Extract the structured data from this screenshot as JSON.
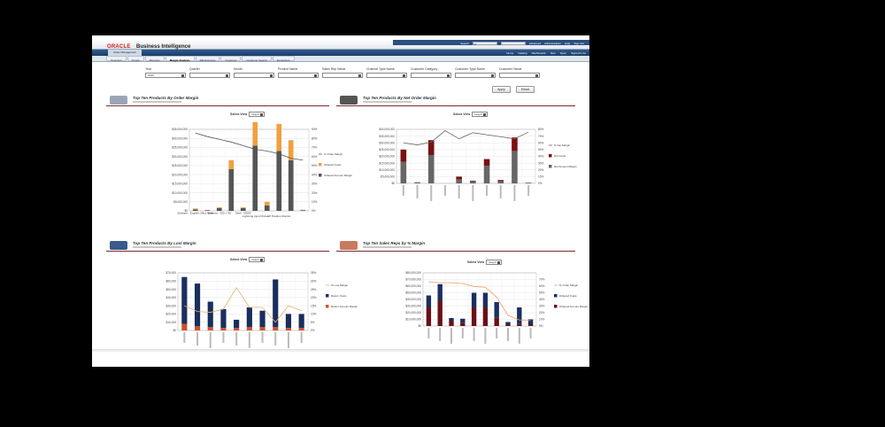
{
  "header": {
    "brand": "ORACLE",
    "product": "Business Intelligence",
    "search_label": "Search",
    "search_scope": "All",
    "links": [
      "Advanced",
      "Administration",
      "Help",
      "Sign Out"
    ]
  },
  "nav": {
    "items": [
      "Home",
      "Catalog",
      "Dashboards",
      "New",
      "Open",
      "Signed In As"
    ]
  },
  "dashboard_tab": "Order Management",
  "tabs": [
    {
      "label": "Overview"
    },
    {
      "label": "Trends"
    },
    {
      "label": "Revenue"
    },
    {
      "label": "Margin Analysis",
      "active": true
    },
    {
      "label": "Effectiveness"
    },
    {
      "label": "Customer"
    },
    {
      "label": "Customer Search"
    },
    {
      "label": "Exceptions"
    }
  ],
  "filters": [
    {
      "label": "Year",
      "value": "2009"
    },
    {
      "label": "Quarter",
      "value": ""
    },
    {
      "label": "Month",
      "value": ""
    },
    {
      "label": "Product Name",
      "value": ""
    },
    {
      "label": "Sales Rep Name",
      "value": ""
    },
    {
      "label": "Channel Type Name",
      "value": ""
    },
    {
      "label": "Customer Category",
      "value": ""
    },
    {
      "label": "Customer Type Name",
      "value": ""
    },
    {
      "label": "Customer Name",
      "value": ""
    }
  ],
  "buttons": {
    "apply": "Apply",
    "reset": "Reset"
  },
  "select_view": {
    "label": "Select View",
    "value": "Graph"
  },
  "chart_data": [
    {
      "type": "bar",
      "stacked": true,
      "title": "Top Ten Products By Order Margin",
      "categories": [
        "Software - English Office Suite",
        "",
        "Wireless - 300 + 4G",
        "",
        "Shell - Z5000",
        "Lightning Input Probe",
        "",
        "HP Pavilion Monitor",
        "",
        ""
      ],
      "ylim": [
        0,
        45000000
      ],
      "yticks": [
        "$0",
        "$5,000,000",
        "$10,000,000",
        "$15,000,000",
        "$20,000,000",
        "$25,000,000",
        "$30,000,000",
        "$35,000,000",
        "$40,000,000",
        "$45,000,000"
      ],
      "y2lim": [
        0,
        90
      ],
      "y2ticks": [
        "0%",
        "10%",
        "20%",
        "30%",
        "40%",
        "50%",
        "60%",
        "70%",
        "80%",
        "90%"
      ],
      "series": [
        {
          "name": "Ordered Amount Margin",
          "color": "#555555",
          "values": [
            800000,
            300000,
            1500000,
            23000000,
            1500000,
            36000000,
            3000000,
            33000000,
            28000000,
            400000
          ]
        },
        {
          "name": "Ordered Costs",
          "color": "#f0a040",
          "values": [
            500000,
            200000,
            500000,
            5000000,
            500000,
            13000000,
            2000000,
            15000000,
            11000000,
            200000
          ]
        }
      ],
      "line": {
        "name": "% Order Margin",
        "color": "#555555",
        "values": [
          86,
          82,
          79,
          76,
          72,
          68,
          66,
          63,
          58,
          56
        ]
      }
    },
    {
      "type": "bar",
      "stacked": true,
      "title": "Top Ten Products By Net Order Margin",
      "categories": [
        "",
        "",
        "",
        "",
        "",
        "",
        "",
        "",
        "",
        ""
      ],
      "ylim": [
        0,
        40000000
      ],
      "yticks": [
        "$0",
        "$5,000,000",
        "$10,000,000",
        "$15,000,000",
        "$20,000,000",
        "$25,000,000",
        "$30,000,000",
        "$35,000,000",
        "$40,000,000"
      ],
      "y2lim": [
        0,
        80
      ],
      "y2ticks": [
        "0%",
        "10%",
        "20%",
        "30%",
        "40%",
        "50%",
        "60%",
        "70%",
        "80%"
      ],
      "series": [
        {
          "name": "Net Amount Margin",
          "color": "#666666",
          "values": [
            16000000,
            500000,
            21000000,
            0,
            3000000,
            1500000,
            13000000,
            1500000,
            24000000,
            300000
          ]
        },
        {
          "name": "Net Costs",
          "color": "#7a1010",
          "values": [
            9000000,
            300000,
            11000000,
            0,
            2000000,
            500000,
            5000000,
            1000000,
            10000000,
            200000
          ]
        }
      ],
      "line": {
        "name": "% Net Margin",
        "color": "#666666",
        "values": [
          60,
          57,
          61,
          78,
          66,
          75,
          72,
          69,
          66,
          76
        ]
      }
    },
    {
      "type": "bar",
      "stacked": true,
      "title": "Top Ten Products By Lost Margin",
      "categories": [
        "",
        "",
        "",
        "",
        "",
        "",
        "",
        "",
        "",
        ""
      ],
      "ylim": [
        0,
        70000
      ],
      "yticks": [
        "$0",
        "$10,000",
        "$20,000",
        "$30,000",
        "$40,000",
        "$50,000",
        "$60,000",
        "$70,000"
      ],
      "y2lim": [
        0,
        35
      ],
      "y2ticks": [
        "0%",
        "5%",
        "10%",
        "15%",
        "20%",
        "25%",
        "30%",
        "35%"
      ],
      "series": [
        {
          "name": "Return Amount Margin",
          "color": "#d0502a",
          "values": [
            8000,
            5000,
            4000,
            3000,
            3000,
            4000,
            4000,
            4000,
            3000,
            3000
          ]
        },
        {
          "name": "Return Costs",
          "color": "#1a2e5e",
          "values": [
            57000,
            52000,
            31000,
            23000,
            10000,
            24000,
            20000,
            58000,
            17000,
            17000
          ]
        }
      ],
      "line": {
        "name": "% Lost Margin",
        "color": "#e8b070",
        "values": [
          15,
          11.5,
          11,
          13,
          26,
          14,
          14,
          5,
          15,
          12
        ]
      }
    },
    {
      "type": "bar",
      "stacked": true,
      "title": "Top Ten Sales Reps by % Margin",
      "categories": [
        "",
        "",
        "",
        "",
        "",
        "",
        "",
        "",
        "",
        ""
      ],
      "ylim": [
        0,
        80000000
      ],
      "yticks": [
        "$0",
        "$10,000,000",
        "$20,000,000",
        "$30,000,000",
        "$40,000,000",
        "$50,000,000",
        "$60,000,000",
        "$70,000,000",
        "$80,000,000"
      ],
      "y2lim": [
        0,
        70
      ],
      "y2ticks": [
        "0%",
        "10%",
        "20%",
        "30%",
        "40%",
        "50%",
        "60%",
        "70%"
      ],
      "series": [
        {
          "name": "Ordered Amount Margin",
          "color": "#6a1018",
          "values": [
            28000000,
            38000000,
            8000000,
            5000000,
            28000000,
            28000000,
            13000000,
            2000000,
            3000000,
            2000000
          ]
        },
        {
          "name": "Ordered Costs",
          "color": "#1a3060",
          "values": [
            18000000,
            25000000,
            4000000,
            6000000,
            22000000,
            22000000,
            23000000,
            4000000,
            25000000,
            8000000
          ]
        }
      ],
      "line": {
        "name": "% Order Margin",
        "color": "#f0a060",
        "values": [
          58,
          57,
          57,
          56,
          52,
          51,
          38,
          14,
          8,
          7
        ]
      }
    }
  ],
  "colors": {
    "oracle_red": "#d0201a",
    "nav_blue": "#1b3d6a",
    "rule": "#7a2a2a"
  }
}
